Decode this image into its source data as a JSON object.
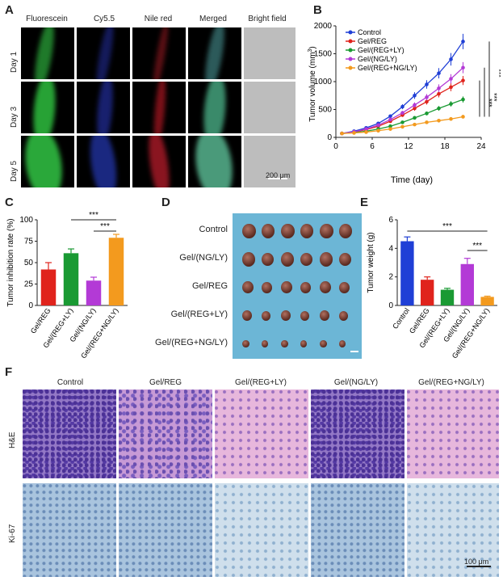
{
  "panels": {
    "a": "A",
    "b": "B",
    "c": "C",
    "d": "D",
    "e": "E",
    "f": "F"
  },
  "panelA": {
    "columns": [
      "Fluorescein",
      "Cy5.5",
      "Nile red",
      "Merged",
      "Bright field"
    ],
    "rows": [
      "Day 1",
      "Day 3",
      "Day 5"
    ],
    "scalebar": "200 μm"
  },
  "panelD": {
    "rows": [
      "Control",
      "Gel/(NG/LY)",
      "Gel/REG",
      "Gel/(REG+LY)",
      "Gel/(REG+NG/LY)"
    ]
  },
  "panelF": {
    "columns": [
      "Control",
      "Gel/REG",
      "Gel/(REG+LY)",
      "Gel/(NG/LY)",
      "Gel/(REG+NG/LY)"
    ],
    "rows": [
      "H&E",
      "Ki-67"
    ],
    "scalebar": "100 μm"
  },
  "colors": {
    "control": "#1f3fd6",
    "reg": "#e0231c",
    "regly": "#1a9a33",
    "ngly": "#b33ad6",
    "regngly": "#f39a1e"
  },
  "chart_data": [
    {
      "type": "line",
      "ylabel_text": "Tumor volume (mm",
      "ylabel_sup": "3",
      "ylabel_end": ")",
      "xlabel": "Time (day)",
      "xlim": [
        0,
        24
      ],
      "ylim": [
        0,
        2000
      ],
      "xticks": [
        0,
        6,
        12,
        18,
        24
      ],
      "yticks": [
        0,
        500,
        1000,
        1500,
        2000
      ],
      "x": [
        1,
        3,
        5,
        7,
        9,
        11,
        13,
        15,
        17,
        19,
        21
      ],
      "series": [
        {
          "name": "Control",
          "color": "#1f3fd6",
          "values": [
            70,
            110,
            170,
            250,
            380,
            550,
            750,
            950,
            1150,
            1400,
            1720
          ]
        },
        {
          "name": "Gel/REG",
          "color": "#e0231c",
          "values": [
            70,
            95,
            140,
            200,
            290,
            400,
            520,
            640,
            780,
            900,
            1020
          ]
        },
        {
          "name": "Gel/(REG+LY)",
          "color": "#1a9a33",
          "values": [
            70,
            85,
            110,
            150,
            200,
            270,
            350,
            430,
            520,
            600,
            680
          ]
        },
        {
          "name": "Gel/(NG/LY)",
          "color": "#b33ad6",
          "values": [
            70,
            100,
            150,
            220,
            320,
            440,
            580,
            720,
            880,
            1050,
            1250
          ]
        },
        {
          "name": "Gel/(REG+NG/LY)",
          "color": "#f39a1e",
          "values": [
            70,
            80,
            95,
            120,
            150,
            190,
            230,
            270,
            300,
            330,
            370
          ]
        }
      ],
      "significance": [
        "***",
        "***",
        "***"
      ]
    },
    {
      "type": "bar",
      "ylabel": "Tumor inhibition rate (%)",
      "ylim": [
        0,
        100
      ],
      "yticks": [
        0,
        25,
        50,
        75,
        100
      ],
      "categories": [
        "Gel/REG",
        "Gel/(REG+LY)",
        "Gel/(NG/LY)",
        "Gel/(REG+NG/LY)"
      ],
      "values": [
        42,
        61,
        29,
        79
      ],
      "errors": [
        8,
        5,
        4,
        4
      ],
      "colors": [
        "#e0231c",
        "#1a9a33",
        "#b33ad6",
        "#f39a1e"
      ],
      "significance": [
        "***",
        "***"
      ]
    },
    {
      "type": "bar",
      "ylabel": "Tumor weight (g)",
      "ylim": [
        0,
        6
      ],
      "yticks": [
        0,
        2,
        4,
        6
      ],
      "categories": [
        "Control",
        "Gel/REG",
        "Gel/(REG+LY)",
        "Gel/(NG/LY)",
        "Gel/(REG+NG/LY)"
      ],
      "values": [
        4.5,
        1.8,
        1.1,
        2.9,
        0.6
      ],
      "errors": [
        0.3,
        0.2,
        0.1,
        0.4,
        0.05
      ],
      "colors": [
        "#1f3fd6",
        "#e0231c",
        "#1a9a33",
        "#b33ad6",
        "#f39a1e"
      ],
      "significance": [
        "***",
        "***"
      ]
    }
  ]
}
